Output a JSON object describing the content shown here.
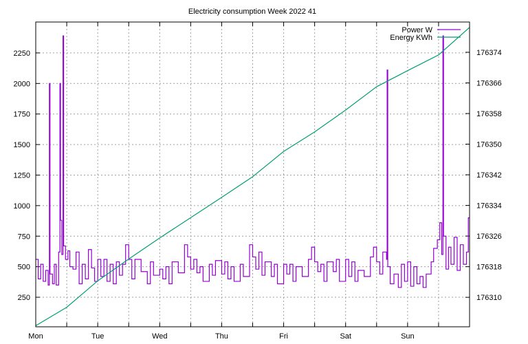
{
  "chart_data": {
    "type": "line",
    "title": "Electricity consumption Week 2022 41",
    "x_tick_labels": [
      "Mon",
      "Tue",
      "Wed",
      "Thu",
      "Fri",
      "Sat",
      "Sun"
    ],
    "xlim_days": [
      0,
      7
    ],
    "y_left": {
      "ticks": [
        250,
        500,
        750,
        1000,
        1250,
        1500,
        1750,
        2000,
        2250
      ],
      "lim": [
        8,
        2503
      ]
    },
    "y_right": {
      "ticks": [
        176310,
        176318,
        176326,
        176334,
        176342,
        176350,
        176358,
        176366,
        176374
      ],
      "lim": [
        176302.3,
        176381.9
      ]
    },
    "grid": true,
    "legend_position": "top-right",
    "colors": {
      "power": "#9400d3",
      "energy": "#009e73",
      "grid": "#a0a0a0"
    },
    "series": [
      {
        "name": "Power W",
        "axis": "left",
        "style": "steps",
        "points": [
          [
            0,
            560
          ],
          [
            0.04,
            400
          ],
          [
            0.08,
            520
          ],
          [
            0.12,
            380
          ],
          [
            0.16,
            470
          ],
          [
            0.2,
            350
          ],
          [
            0.22,
            2000
          ],
          [
            0.23,
            440
          ],
          [
            0.27,
            360
          ],
          [
            0.3,
            520
          ],
          [
            0.33,
            350
          ],
          [
            0.37,
            620
          ],
          [
            0.39,
            2000
          ],
          [
            0.4,
            880
          ],
          [
            0.42,
            600
          ],
          [
            0.44,
            2390
          ],
          [
            0.45,
            670
          ],
          [
            0.48,
            560
          ],
          [
            0.52,
            630
          ],
          [
            0.55,
            500
          ],
          [
            0.6,
            480
          ],
          [
            0.65,
            620
          ],
          [
            0.7,
            360
          ],
          [
            0.75,
            520
          ],
          [
            0.8,
            400
          ],
          [
            0.85,
            640
          ],
          [
            0.9,
            490
          ],
          [
            0.95,
            380
          ],
          [
            1.0,
            560
          ],
          [
            1.05,
            420
          ],
          [
            1.1,
            560
          ],
          [
            1.15,
            380
          ],
          [
            1.2,
            520
          ],
          [
            1.25,
            360
          ],
          [
            1.3,
            540
          ],
          [
            1.35,
            430
          ],
          [
            1.4,
            520
          ],
          [
            1.45,
            680
          ],
          [
            1.5,
            560
          ],
          [
            1.55,
            400
          ],
          [
            1.6,
            560
          ],
          [
            1.7,
            460
          ],
          [
            1.8,
            360
          ],
          [
            1.85,
            540
          ],
          [
            1.9,
            430
          ],
          [
            2.0,
            480
          ],
          [
            2.05,
            400
          ],
          [
            2.1,
            500
          ],
          [
            2.15,
            360
          ],
          [
            2.2,
            540
          ],
          [
            2.3,
            450
          ],
          [
            2.4,
            680
          ],
          [
            2.45,
            580
          ],
          [
            2.5,
            480
          ],
          [
            2.55,
            560
          ],
          [
            2.6,
            450
          ],
          [
            2.65,
            500
          ],
          [
            2.7,
            380
          ],
          [
            2.8,
            520
          ],
          [
            2.85,
            430
          ],
          [
            2.9,
            550
          ],
          [
            3.0,
            440
          ],
          [
            3.05,
            540
          ],
          [
            3.1,
            400
          ],
          [
            3.15,
            500
          ],
          [
            3.2,
            380
          ],
          [
            3.3,
            520
          ],
          [
            3.35,
            420
          ],
          [
            3.45,
            680
          ],
          [
            3.5,
            580
          ],
          [
            3.55,
            480
          ],
          [
            3.6,
            620
          ],
          [
            3.65,
            430
          ],
          [
            3.7,
            540
          ],
          [
            3.8,
            420
          ],
          [
            3.85,
            520
          ],
          [
            3.9,
            360
          ],
          [
            4.0,
            520
          ],
          [
            4.05,
            440
          ],
          [
            4.1,
            520
          ],
          [
            4.15,
            380
          ],
          [
            4.2,
            500
          ],
          [
            4.3,
            420
          ],
          [
            4.4,
            560
          ],
          [
            4.45,
            660
          ],
          [
            4.5,
            540
          ],
          [
            4.55,
            460
          ],
          [
            4.6,
            520
          ],
          [
            4.65,
            380
          ],
          [
            4.7,
            540
          ],
          [
            4.8,
            460
          ],
          [
            4.85,
            560
          ],
          [
            4.9,
            380
          ],
          [
            5.0,
            560
          ],
          [
            5.05,
            420
          ],
          [
            5.1,
            540
          ],
          [
            5.15,
            380
          ],
          [
            5.2,
            470
          ],
          [
            5.3,
            420
          ],
          [
            5.4,
            580
          ],
          [
            5.45,
            660
          ],
          [
            5.5,
            540
          ],
          [
            5.55,
            440
          ],
          [
            5.6,
            620
          ],
          [
            5.66,
            560
          ],
          [
            5.67,
            2110
          ],
          [
            5.68,
            500
          ],
          [
            5.72,
            360
          ],
          [
            5.78,
            440
          ],
          [
            5.85,
            330
          ],
          [
            5.9,
            520
          ],
          [
            5.95,
            380
          ],
          [
            6.0,
            540
          ],
          [
            6.05,
            340
          ],
          [
            6.1,
            500
          ],
          [
            6.15,
            360
          ],
          [
            6.2,
            420
          ],
          [
            6.25,
            330
          ],
          [
            6.3,
            440
          ],
          [
            6.38,
            540
          ],
          [
            6.42,
            650
          ],
          [
            6.48,
            720
          ],
          [
            6.52,
            860
          ],
          [
            6.55,
            600
          ],
          [
            6.57,
            2390
          ],
          [
            6.58,
            750
          ],
          [
            6.62,
            480
          ],
          [
            6.66,
            660
          ],
          [
            6.7,
            520
          ],
          [
            6.75,
            740
          ],
          [
            6.8,
            470
          ],
          [
            6.85,
            680
          ],
          [
            6.9,
            520
          ],
          [
            6.95,
            620
          ],
          [
            6.98,
            900
          ],
          [
            7.0,
            900
          ]
        ]
      },
      {
        "name": "Energy KWh",
        "axis": "right",
        "style": "line",
        "points": [
          [
            0,
            176302.6
          ],
          [
            0.5,
            176307.4
          ],
          [
            1,
            176314.3
          ],
          [
            1.5,
            176320
          ],
          [
            2,
            176325.5
          ],
          [
            2.5,
            176330.8
          ],
          [
            3,
            176336.1
          ],
          [
            3.5,
            176341.5
          ],
          [
            4,
            176348.1
          ],
          [
            4.5,
            176353.2
          ],
          [
            5,
            176358.9
          ],
          [
            5.5,
            176365
          ],
          [
            6,
            176369.2
          ],
          [
            6.5,
            176373.3
          ],
          [
            7,
            176380.5
          ]
        ]
      }
    ]
  }
}
